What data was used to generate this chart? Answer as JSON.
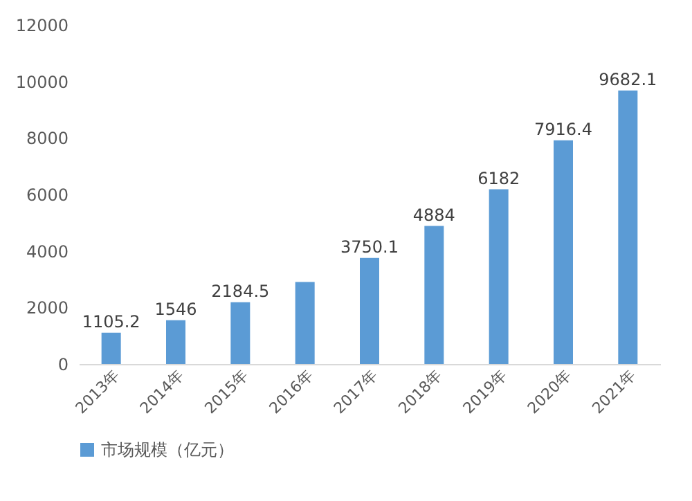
{
  "chart_data": {
    "type": "bar",
    "categories": [
      "2013年",
      "2014年",
      "2015年",
      "2016年",
      "2017年",
      "2018年",
      "2019年",
      "2020年",
      "2021年"
    ],
    "series": [
      {
        "name": "市场规模（亿元）",
        "color": "#5b9bd5",
        "values": [
          1105.2,
          1546,
          2184.5,
          2900,
          3750.1,
          4884,
          6182,
          7916.4,
          9682.1
        ],
        "value_labels": [
          "1105.2",
          "1546",
          "2184.5",
          null,
          "3750.1",
          "4884",
          "6182",
          "7916.4",
          "9682.1"
        ]
      }
    ],
    "ylim": [
      0,
      12000
    ],
    "yticks": [
      0,
      2000,
      4000,
      6000,
      8000,
      10000,
      12000
    ],
    "grid": false,
    "legend": "bottom"
  }
}
